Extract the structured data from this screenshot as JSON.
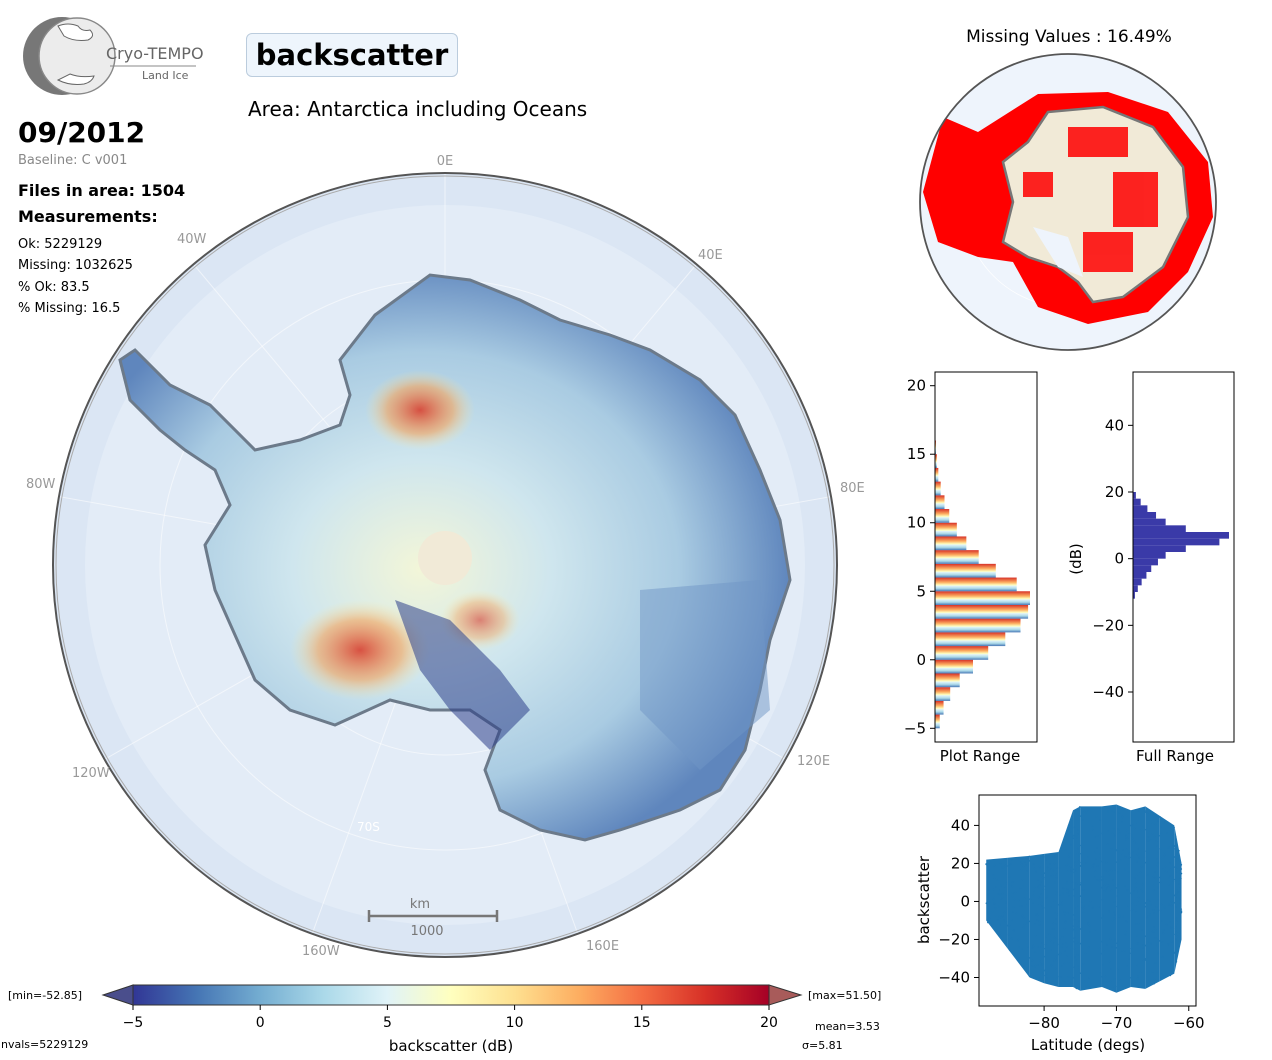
{
  "header": {
    "logo_title": "Cryo-TEMPO",
    "logo_subtitle": "Land Ice",
    "parameter": "backscatter",
    "area": "Area: Antarctica including Oceans",
    "date": "09/2012",
    "baseline": "Baseline: C v001",
    "files_in_area": "Files in area: 1504",
    "measurements_label": "Measurements:",
    "ok": "Ok: 5229129",
    "missing": "Missing: 1032625",
    "pct_ok": "% Ok: 83.5",
    "pct_missing": "% Missing: 16.5"
  },
  "map": {
    "lon_labels": [
      "0E",
      "40E",
      "80E",
      "120E",
      "160E",
      "160W",
      "120W",
      "80W",
      "40W"
    ],
    "lat_label": "70S",
    "scale_unit": "km",
    "scale_value": "1000"
  },
  "colorbar": {
    "min_label": "[min=-52.85]",
    "max_label": "[max=51.50]",
    "ticks": [
      "−5",
      "0",
      "5",
      "10",
      "15",
      "20"
    ],
    "label": "backscatter (dB)",
    "nvals": "nvals=5229129",
    "mean": "mean=3.53",
    "sigma": "σ=5.81"
  },
  "missing_map": {
    "title": "Missing Values : 16.49%",
    "missing_color": "#ff0000"
  },
  "colors": {
    "ocean": "#dbe6f4",
    "land_base": "#cfe4ef",
    "hist_full": "#3a3aa8",
    "scatter": "#1f77b4"
  },
  "chart_data": [
    {
      "type": "bar",
      "orientation": "horizontal",
      "title": "",
      "xlabel": "Plot Range",
      "ylabel": "",
      "ylim": [
        -6,
        21
      ],
      "yticks": [
        "−5",
        "0",
        "5",
        "10",
        "15",
        "20"
      ],
      "bins": [
        -5,
        -4,
        -3,
        -2,
        -1,
        0,
        1,
        2,
        3,
        4,
        5,
        6,
        7,
        8,
        9,
        10,
        11,
        12,
        13,
        14,
        15,
        16
      ],
      "values": [
        0.05,
        0.09,
        0.16,
        0.26,
        0.4,
        0.56,
        0.74,
        0.9,
        0.98,
        1.0,
        0.86,
        0.64,
        0.46,
        0.33,
        0.23,
        0.15,
        0.1,
        0.06,
        0.035,
        0.02,
        0.01,
        0.004
      ]
    },
    {
      "type": "bar",
      "orientation": "horizontal",
      "title": "",
      "xlabel": "Full Range",
      "ylabel": "(dB)",
      "ylim": [
        -55,
        56
      ],
      "yticks": [
        "−40",
        "−20",
        "0",
        "20",
        "40"
      ],
      "bins": [
        -12,
        -10,
        -8,
        -6,
        -4,
        -2,
        0,
        2,
        4,
        6,
        8,
        10,
        12,
        14,
        16,
        18
      ],
      "values": [
        0.02,
        0.05,
        0.09,
        0.14,
        0.19,
        0.26,
        0.34,
        0.55,
        0.9,
        1.0,
        0.55,
        0.34,
        0.24,
        0.15,
        0.08,
        0.03
      ]
    },
    {
      "type": "scatter",
      "title": "",
      "xlabel": "Latitude (degs)",
      "ylabel": "backscatter",
      "xlim": [
        -89,
        -59
      ],
      "ylim": [
        -55,
        56
      ],
      "xticks": [
        "−80",
        "−70",
        "−60"
      ],
      "yticks": [
        "−40",
        "−20",
        "0",
        "20",
        "40"
      ],
      "x": [
        -88,
        -85,
        -82,
        -80,
        -78,
        -76,
        -75,
        -72,
        -70,
        -68,
        -66,
        -64,
        -62,
        -61
      ],
      "y_max": [
        22,
        23,
        24,
        25,
        26,
        48,
        50,
        50,
        51,
        48,
        50,
        45,
        40,
        20
      ],
      "y_min": [
        -10,
        -25,
        -40,
        -43,
        -45,
        -45,
        -47,
        -45,
        -48,
        -45,
        -46,
        -42,
        -38,
        -20
      ]
    }
  ]
}
